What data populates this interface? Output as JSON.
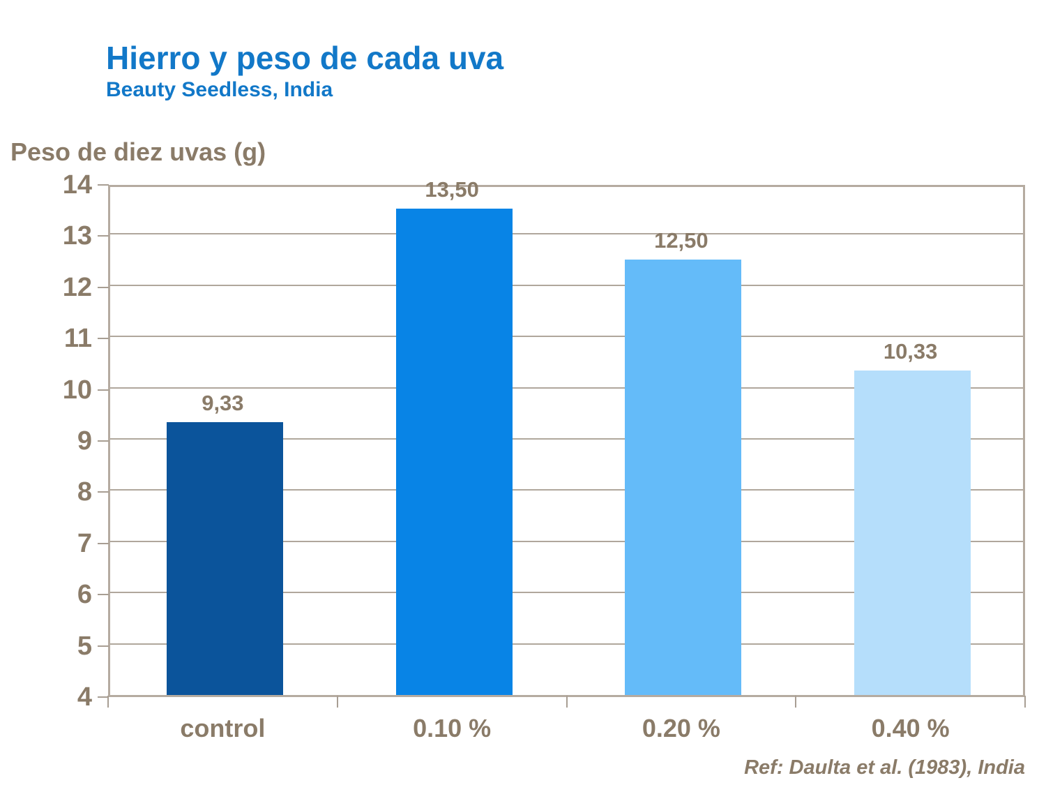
{
  "page": {
    "background": "#ffffff"
  },
  "colors": {
    "title_blue": "#1278C8",
    "axis_text_brown": "#8A7B68",
    "plot_border": "#B5ABA0",
    "gridline": "#B0A79C",
    "tick_mark": "#A89E93"
  },
  "chart_data": {
    "type": "bar",
    "title": "Hierro y peso de cada uva",
    "subtitle": "Beauty Seedless, India",
    "ylabel": "Peso de diez uvas (g)",
    "xlabel": "",
    "categories": [
      "control",
      "0.10 %",
      "0.20 %",
      "0.40 %"
    ],
    "values": [
      9.33,
      13.5,
      12.5,
      10.33
    ],
    "value_labels": [
      "9,33",
      "13,50",
      "12,50",
      "10,33"
    ],
    "bar_colors": [
      "#0B549B",
      "#0884E6",
      "#64BBF9",
      "#B5DEFB"
    ],
    "ylim": [
      4,
      14
    ],
    "yticks": [
      4,
      5,
      6,
      7,
      8,
      9,
      10,
      11,
      12,
      13,
      14
    ],
    "ytick_step": 1,
    "grid": true,
    "legend_position": "none",
    "annotation": "Ref: Daulta et al. (1983), India"
  }
}
